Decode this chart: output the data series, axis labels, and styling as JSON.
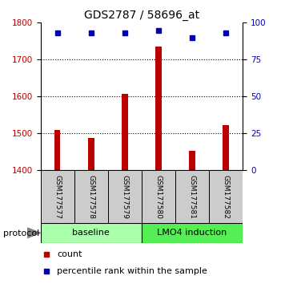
{
  "title": "GDS2787 / 58696_at",
  "samples": [
    "GSM177577",
    "GSM177578",
    "GSM177579",
    "GSM177580",
    "GSM177581",
    "GSM177582"
  ],
  "counts": [
    1510,
    1488,
    1607,
    1735,
    1452,
    1522
  ],
  "percentiles": [
    93,
    93,
    93,
    95,
    90,
    93
  ],
  "ylim_left": [
    1400,
    1800
  ],
  "ylim_right": [
    0,
    100
  ],
  "yticks_left": [
    1400,
    1500,
    1600,
    1700,
    1800
  ],
  "yticks_right": [
    0,
    25,
    50,
    75,
    100
  ],
  "bar_color": "#BB0000",
  "dot_color": "#0000BB",
  "baseline_color": "#AAFFAA",
  "lmo4_color": "#55EE55",
  "baseline_label": "baseline",
  "lmo4_label": "LMO4 induction",
  "protocol_label": "protocol",
  "legend_count": "count",
  "legend_percentile": "percentile rank within the sample",
  "sample_box_color": "#CCCCCC",
  "bar_width": 0.18
}
